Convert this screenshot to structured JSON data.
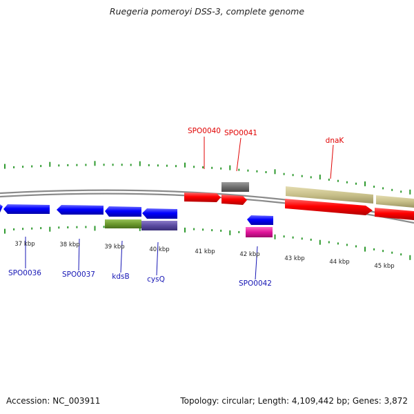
{
  "title": "Ruegeria pomeroyi DSS-3, complete genome",
  "footer": {
    "accession": "Accession: NC_003911",
    "stats": "Topology: circular; Length: 4,109,442 bp; Genes: 3,872"
  },
  "colors": {
    "background": "#ffffff",
    "backbone": "#888888",
    "tick": "#2e9a2e",
    "forward_label": "#e00000",
    "reverse_label": "#1414b4",
    "forward_gene": "#ff0000",
    "reverse_gene": "#0000ff",
    "olive_feature": "#c8c08a",
    "gray_feature": "#6e6e6e",
    "green_feature": "#6c9a2e",
    "purple_feature": "#5a4aa0",
    "pink_feature": "#e0149a"
  },
  "scale_labels": [
    "37 kbp",
    "38 kbp",
    "39 kbp",
    "40 kbp",
    "41 kbp",
    "42 kbp",
    "43 kbp",
    "44 kbp",
    "45 kbp"
  ],
  "forward_gene_labels": [
    "SPO0040",
    "SPO0041",
    "dnaK"
  ],
  "reverse_gene_labels": [
    "SPO0036",
    "SPO0037",
    "kdsB",
    "cysQ",
    "SPO0042"
  ]
}
